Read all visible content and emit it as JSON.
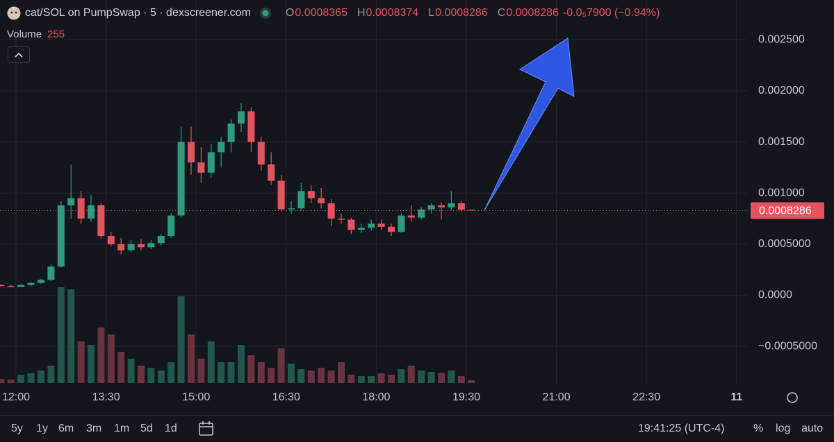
{
  "chart_data": {
    "type": "candlestick",
    "title": "cat/SOL on PumpSwap · 5 · dexscreener.com",
    "ohlc_labels": [
      "O",
      "H",
      "L",
      "C"
    ],
    "change_text": "-0.0₅7900 (−0.94%)",
    "volume_label": "Volume",
    "x": [
      "11:45",
      "11:55",
      "12:05",
      "12:15",
      "12:25",
      "12:35",
      "12:45",
      "12:55",
      "13:05",
      "13:15",
      "13:25",
      "13:35",
      "13:45",
      "13:55",
      "14:05",
      "14:15",
      "14:25",
      "14:35",
      "14:45",
      "14:55",
      "15:05",
      "15:15",
      "15:25",
      "15:35",
      "15:45",
      "15:55",
      "16:05",
      "16:15",
      "16:25",
      "16:35",
      "16:45",
      "16:55",
      "17:05",
      "17:15",
      "17:25",
      "17:35",
      "17:45",
      "17:55",
      "18:05",
      "18:15",
      "18:25",
      "18:35",
      "18:45",
      "18:55",
      "19:05",
      "19:15",
      "19:25",
      "19:35"
    ],
    "open": [
      0.0001,
      9e-05,
      8e-05,
      0.0001,
      0.00012,
      0.00015,
      0.00028,
      0.00088,
      0.00095,
      0.00075,
      0.00088,
      0.00058,
      0.0005,
      0.00044,
      0.0005,
      0.00047,
      0.00051,
      0.00058,
      0.00078,
      0.0015,
      0.0013,
      0.0012,
      0.0014,
      0.0015,
      0.00168,
      0.0018,
      0.0015,
      0.00128,
      0.00112,
      0.00084,
      0.00085,
      0.00102,
      0.00095,
      0.0009,
      0.00075,
      0.00074,
      0.00064,
      0.00066,
      0.0007,
      0.00067,
      0.00062,
      0.00078,
      0.00076,
      0.00084,
      0.00088,
      0.00086,
      0.0009,
      0.0008365
    ],
    "high": [
      0.00011,
      0.0001,
      0.00011,
      0.00013,
      0.00016,
      0.0003,
      0.00092,
      0.00128,
      0.00102,
      0.00098,
      0.0009,
      0.00062,
      0.00056,
      0.00054,
      0.00055,
      0.00054,
      0.0006,
      0.0008,
      0.00165,
      0.00165,
      0.00145,
      0.00148,
      0.00155,
      0.00172,
      0.00188,
      0.00184,
      0.00155,
      0.0014,
      0.00118,
      0.00092,
      0.0011,
      0.00108,
      0.00105,
      0.00094,
      0.0008,
      0.00076,
      0.0007,
      0.00074,
      0.00074,
      0.0007,
      0.0008,
      0.00088,
      0.00086,
      0.0009,
      0.00091,
      0.00102,
      0.00092,
      0.0008374
    ],
    "low": [
      8e-05,
      8e-05,
      8e-05,
      9e-05,
      0.00011,
      0.00014,
      0.00027,
      0.00075,
      0.0007,
      0.00072,
      0.00055,
      0.00048,
      0.0004,
      0.00042,
      0.00044,
      0.00045,
      0.00049,
      0.00056,
      0.00076,
      0.00118,
      0.0011,
      0.00115,
      0.00125,
      0.0014,
      0.0016,
      0.0014,
      0.00122,
      0.00108,
      0.00082,
      0.0008,
      0.00083,
      0.0009,
      0.00085,
      0.00068,
      0.0007,
      0.0006,
      0.00061,
      0.00063,
      0.00064,
      0.00058,
      0.00061,
      0.00072,
      0.00074,
      0.0008,
      0.00074,
      0.00084,
      0.00082,
      0.0008286
    ],
    "close": [
      9e-05,
      8e-05,
      0.0001,
      0.00012,
      0.00015,
      0.00028,
      0.00088,
      0.00095,
      0.00075,
      0.00088,
      0.00058,
      0.0005,
      0.00044,
      0.0005,
      0.00047,
      0.00051,
      0.00058,
      0.00078,
      0.0015,
      0.0013,
      0.0012,
      0.0014,
      0.0015,
      0.00168,
      0.0018,
      0.0015,
      0.00128,
      0.00112,
      0.00084,
      0.00085,
      0.00102,
      0.00095,
      0.0009,
      0.00075,
      0.00074,
      0.00064,
      0.00066,
      0.0007,
      0.00067,
      0.00062,
      0.00078,
      0.00076,
      0.00084,
      0.00088,
      0.00086,
      0.0009,
      0.0008365,
      0.0008286
    ],
    "volume": [
      384,
      320,
      768,
      896,
      1152,
      1600,
      8832,
      8640,
      3840,
      3520,
      5120,
      4480,
      2880,
      2240,
      1600,
      1408,
      1152,
      1920,
      8000,
      4480,
      2240,
      3840,
      1920,
      1920,
      3520,
      2560,
      1920,
      1408,
      3200,
      1792,
      1280,
      1152,
      1408,
      1152,
      1920,
      768,
      640,
      640,
      896,
      768,
      1280,
      1600,
      1152,
      1024,
      960,
      1152,
      640,
      255
    ],
    "up_color": "#2e9c7e",
    "down_color": "#e5545e",
    "volume_up_color": "#22574c",
    "volume_down_color": "#6b3340",
    "ylim": [
      -0.00088,
      0.00289
    ],
    "yticks": [
      {
        "value": 0.0025,
        "label": "0.002500"
      },
      {
        "value": 0.002,
        "label": "0.002000"
      },
      {
        "value": 0.0015,
        "label": "0.001500"
      },
      {
        "value": 0.001,
        "label": "0.001000"
      },
      {
        "value": 0.0005,
        "label": "0.0005000"
      },
      {
        "value": 0,
        "label": "0.0000"
      },
      {
        "value": -0.0005,
        "label": "−0.0005000"
      }
    ],
    "xticks": [
      "12:00",
      "13:30",
      "15:00",
      "16:30",
      "18:00",
      "19:30",
      "21:00",
      "22:30",
      "11"
    ],
    "grid": true
  },
  "toolbar": {
    "ranges": [
      "5y",
      "1y",
      "6m",
      "3m",
      "1m",
      "5d",
      "1d"
    ],
    "clock": "19:41:25 (UTC-4)",
    "scale_buttons": [
      "%",
      "log",
      "auto"
    ]
  }
}
